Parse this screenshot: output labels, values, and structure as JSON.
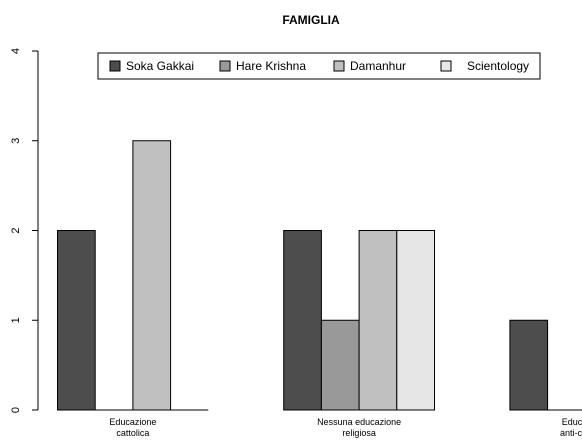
{
  "chart_data": {
    "type": "bar",
    "title": "FAMIGLIA",
    "xlabel": "",
    "ylabel": "",
    "ylim": [
      0,
      4
    ],
    "yticks": [
      "0",
      "1",
      "2",
      "3",
      "4"
    ],
    "categories": [
      [
        "Educazione",
        "cattolica"
      ],
      [
        "Nessuna educazione",
        "religiosa"
      ],
      [
        "Educazione",
        "anti-cattolica"
      ]
    ],
    "series": [
      {
        "name": "Soka Gakkai",
        "color": "#4d4d4d",
        "values": [
          2,
          2,
          1
        ]
      },
      {
        "name": "Hare Krishna",
        "color": "#999999",
        "values": [
          0,
          1,
          0
        ]
      },
      {
        "name": "Damanhur",
        "color": "#c0c0c0",
        "values": [
          3,
          2,
          0
        ]
      },
      {
        "name": "Scientology",
        "color": "#e6e6e6",
        "values": [
          0,
          2,
          0
        ]
      }
    ],
    "legend_position": "top",
    "grid": false
  }
}
